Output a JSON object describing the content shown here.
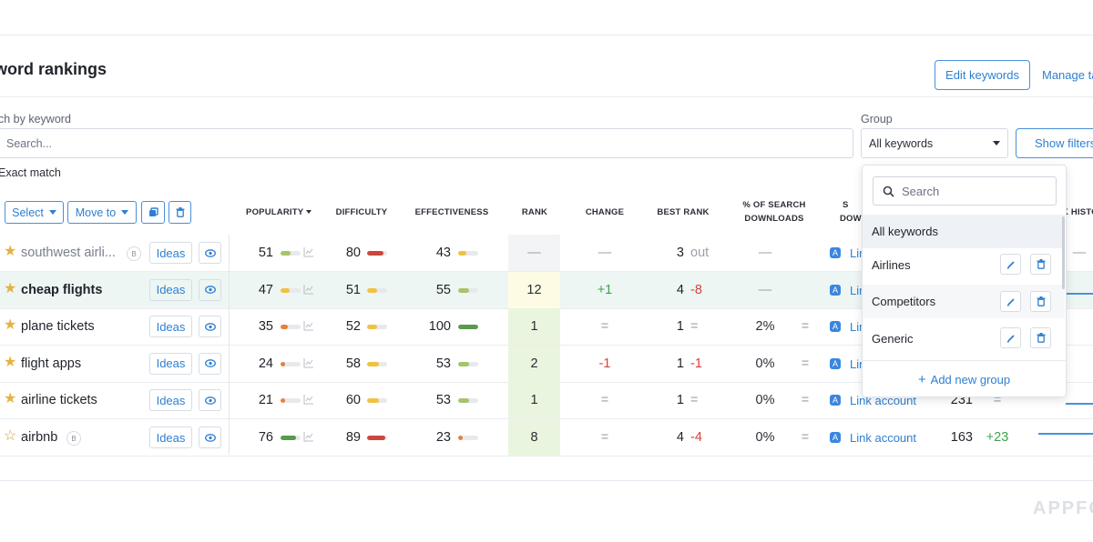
{
  "page": {
    "title": "word rankings"
  },
  "header": {
    "edit_keywords": "Edit keywords",
    "manage": "Manage ta"
  },
  "search": {
    "label": "ch by keyword",
    "placeholder": "Search...",
    "exact_match": "Exact match"
  },
  "group": {
    "label": "Group",
    "selected": "All keywords",
    "show_filters": "Show filters"
  },
  "toolbar": {
    "select": "Select",
    "move_to": "Move to"
  },
  "columns": {
    "popularity": "POPULARITY",
    "difficulty": "DIFFICULTY",
    "effectiveness": "EFFECTIVENESS",
    "rank": "RANK",
    "change": "CHANGE",
    "best_rank": "BEST RANK",
    "search_downloads_1": "% OF SEARCH",
    "search_downloads_2": "DOWNLOADS",
    "partial_s": "S",
    "partial_dow": "DOW",
    "partial_khist": "K HISTO"
  },
  "colors": {
    "accent": "#2f7fd0",
    "positive": "#3fa34d",
    "negative": "#d9413b",
    "high": "#c9483e",
    "mid": "#f0c240",
    "low": "#e87f3a",
    "good": "#5a9a4c"
  },
  "rows": [
    {
      "keyword": "southwest airli...",
      "starred": true,
      "muted": true,
      "badge": "B",
      "ideas": "Ideas",
      "popularity": "51",
      "pop_pct": 0.51,
      "pop_color": "#a7c46a",
      "difficulty": "80",
      "diff_pct": 0.8,
      "diff_color": "#c9483e",
      "effectiveness": "43",
      "eff_pct": 0.43,
      "eff_color": "#f0c240",
      "rank": "—",
      "rank_bg": "grey",
      "change": "—",
      "change_kind": "dim",
      "best_rank": "3",
      "best_change": "out",
      "best_kind": "dim",
      "downloads": "—",
      "downloads_kind": "dim",
      "eq": "",
      "link": "Lin",
      "extra": "",
      "extra_change": "",
      "extra_end": "—"
    },
    {
      "keyword": "cheap flights",
      "starred": true,
      "bold": true,
      "ideas": "Ideas",
      "popularity": "47",
      "pop_pct": 0.47,
      "pop_color": "#f0c240",
      "difficulty": "51",
      "diff_pct": 0.51,
      "diff_color": "#f0c240",
      "effectiveness": "55",
      "eff_pct": 0.55,
      "eff_color": "#a7c46a",
      "rank": "12",
      "rank_bg": "yellow",
      "change": "+1",
      "change_kind": "pos",
      "best_rank": "4",
      "best_change": "-8",
      "best_kind": "neg",
      "downloads": "—",
      "downloads_kind": "dim",
      "eq": "",
      "link": "Lin",
      "extra": "",
      "extra_change": "",
      "extra_end": ""
    },
    {
      "keyword": "plane tickets",
      "starred": true,
      "ideas": "Ideas",
      "popularity": "35",
      "pop_pct": 0.35,
      "pop_color": "#e87f3a",
      "difficulty": "52",
      "diff_pct": 0.52,
      "diff_color": "#f0c240",
      "effectiveness": "100",
      "eff_pct": 1.0,
      "eff_color": "#5a9a4c",
      "rank": "1",
      "rank_bg": "green",
      "change": "=",
      "change_kind": "dim",
      "best_rank": "1",
      "best_change": "=",
      "best_kind": "dim",
      "downloads": "2%",
      "downloads_kind": "",
      "eq": "=",
      "link": "Lin",
      "extra": "",
      "extra_change": "",
      "extra_end": ""
    },
    {
      "keyword": "flight apps",
      "starred": true,
      "ideas": "Ideas",
      "popularity": "24",
      "pop_pct": 0.24,
      "pop_color": "#e87f3a",
      "difficulty": "58",
      "diff_pct": 0.58,
      "diff_color": "#f0c240",
      "effectiveness": "53",
      "eff_pct": 0.53,
      "eff_color": "#a7c46a",
      "rank": "2",
      "rank_bg": "green",
      "change": "-1",
      "change_kind": "neg",
      "best_rank": "1",
      "best_change": "-1",
      "best_kind": "neg",
      "downloads": "0%",
      "downloads_kind": "",
      "eq": "=",
      "link": "Lin",
      "extra": "",
      "extra_change": "",
      "extra_end": ""
    },
    {
      "keyword": "airline tickets",
      "starred": true,
      "ideas": "Ideas",
      "popularity": "21",
      "pop_pct": 0.21,
      "pop_color": "#e87f3a",
      "difficulty": "60",
      "diff_pct": 0.6,
      "diff_color": "#f0c240",
      "effectiveness": "53",
      "eff_pct": 0.53,
      "eff_color": "#a7c46a",
      "rank": "1",
      "rank_bg": "green",
      "change": "=",
      "change_kind": "dim",
      "best_rank": "1",
      "best_change": "=",
      "best_kind": "dim",
      "downloads": "0%",
      "downloads_kind": "",
      "eq": "=",
      "link": "Link account",
      "extra": "231",
      "extra_change": "=",
      "extra_end": ""
    },
    {
      "keyword": "airbnb",
      "starred": false,
      "badge": "B",
      "ideas": "Ideas",
      "popularity": "76",
      "pop_pct": 0.76,
      "pop_color": "#5a9a4c",
      "difficulty": "89",
      "diff_pct": 0.89,
      "diff_color": "#c9483e",
      "effectiveness": "23",
      "eff_pct": 0.23,
      "eff_color": "#e87f3a",
      "rank": "8",
      "rank_bg": "green",
      "change": "=",
      "change_kind": "dim",
      "best_rank": "4",
      "best_change": "-4",
      "best_kind": "neg",
      "downloads": "0%",
      "downloads_kind": "",
      "eq": "=",
      "link": "Link account",
      "extra": "163",
      "extra_change": "+23",
      "extra_end": ""
    }
  ],
  "dropdown": {
    "search_placeholder": "Search",
    "items": [
      {
        "label": "All keywords",
        "editable": false
      },
      {
        "label": "Airlines",
        "editable": true
      },
      {
        "label": "Competitors",
        "editable": true
      },
      {
        "label": "Generic",
        "editable": true
      }
    ],
    "add_group": "Add new group"
  },
  "watermark": "APPFO",
  "icons": {
    "star": "star-icon",
    "eye": "eye-icon",
    "edit": "pencil-icon",
    "delete": "trash-icon",
    "copy": "copy-icon",
    "search": "search-icon",
    "chart": "chart-icon",
    "app_store": "app-store-icon"
  }
}
